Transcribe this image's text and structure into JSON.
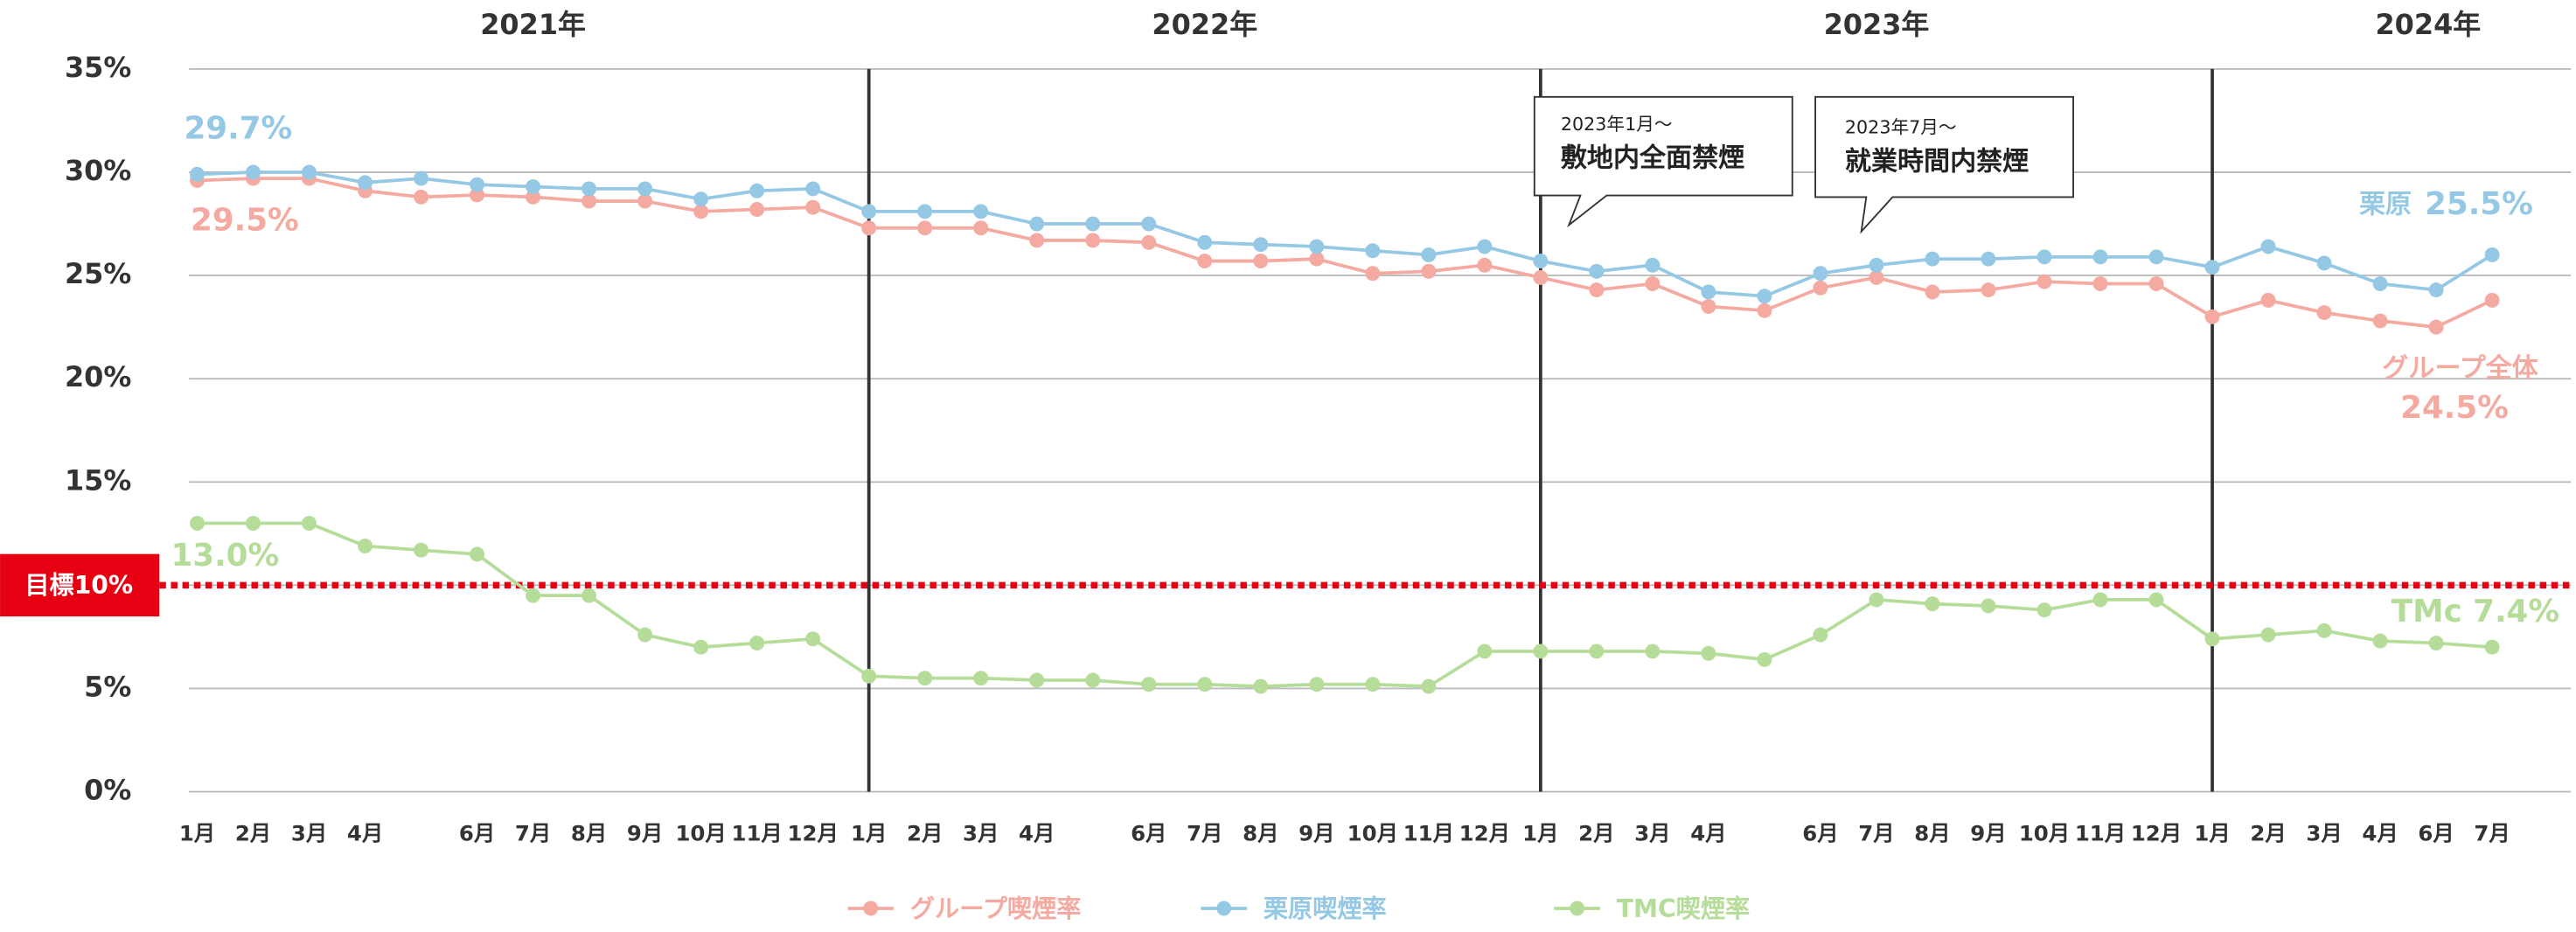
{
  "chart_data": {
    "type": "line",
    "years": [
      "2021年",
      "2022年",
      "2023年",
      "2024年"
    ],
    "categories": [
      "1月",
      "2月",
      "3月",
      "4月",
      null,
      "6月",
      "7月",
      "8月",
      "9月",
      "10月",
      "11月",
      "12月",
      "1月",
      "2月",
      "3月",
      "4月",
      null,
      "6月",
      "7月",
      "8月",
      "9月",
      "10月",
      "11月",
      "12月",
      "1月",
      "2月",
      "3月",
      "4月",
      null,
      "6月",
      "7月",
      "8月",
      "9月",
      "10月",
      "11月",
      "12月",
      "1月",
      "2月",
      "3月",
      "4月",
      "6月",
      "7月"
    ],
    "series": [
      {
        "name": "グループ喫煙率",
        "color": "#f4aaa0",
        "values": [
          29.6,
          29.7,
          29.7,
          29.1,
          28.8,
          28.9,
          28.8,
          28.6,
          28.6,
          28.1,
          28.2,
          28.3,
          27.3,
          27.3,
          27.3,
          26.7,
          26.7,
          26.6,
          25.7,
          25.7,
          25.8,
          25.1,
          25.2,
          25.5,
          24.9,
          24.3,
          24.6,
          23.5,
          23.3,
          24.4,
          24.9,
          24.2,
          24.3,
          24.7,
          24.6,
          24.6,
          23.0,
          23.8,
          23.2,
          22.8,
          22.5,
          23.8
        ]
      },
      {
        "name": "栗原喫煙率",
        "color": "#94c8e4",
        "values": [
          29.9,
          30.0,
          30.0,
          29.5,
          29.7,
          29.4,
          29.3,
          29.2,
          29.2,
          28.7,
          29.1,
          29.2,
          28.1,
          28.1,
          28.1,
          27.5,
          27.5,
          27.5,
          26.6,
          26.5,
          26.4,
          26.2,
          26.0,
          26.4,
          25.7,
          25.2,
          25.5,
          24.2,
          24.0,
          25.1,
          25.5,
          25.8,
          25.8,
          25.9,
          25.9,
          25.9,
          25.4,
          26.4,
          25.6,
          24.6,
          24.3,
          26.0
        ]
      },
      {
        "name": "TMC喫煙率",
        "color": "#b5dc98",
        "values": [
          13.0,
          13.0,
          13.0,
          11.9,
          11.7,
          11.5,
          9.5,
          9.5,
          7.6,
          7.0,
          7.2,
          7.4,
          5.6,
          5.5,
          5.5,
          5.4,
          5.4,
          5.2,
          5.2,
          5.1,
          5.2,
          5.2,
          5.1,
          6.8,
          6.8,
          6.8,
          6.8,
          6.7,
          6.4,
          7.6,
          9.3,
          9.1,
          9.0,
          8.8,
          9.3,
          9.3,
          7.4,
          7.6,
          7.8,
          7.3,
          7.2,
          7.0
        ]
      }
    ],
    "ylim": [
      0,
      35
    ],
    "yticks": [
      {
        "value": 0,
        "label": "0%"
      },
      {
        "value": 5,
        "label": "5%"
      },
      {
        "value": 10,
        "label": "10%"
      },
      {
        "value": 15,
        "label": "15%"
      },
      {
        "value": 20,
        "label": "20%"
      },
      {
        "value": 25,
        "label": "25%"
      },
      {
        "value": 30,
        "label": "30%"
      },
      {
        "value": 35,
        "label": "35%"
      }
    ],
    "grid": true,
    "target": {
      "value": 10,
      "label": "目標10%",
      "color": "#e60012"
    },
    "callouts": [
      {
        "date": "2023年1月～",
        "text": "敷地内全面禁煙"
      },
      {
        "date": "2023年7月～",
        "text": "就業時間内禁煙"
      }
    ],
    "annotations": [
      "29.7%",
      "29.5%",
      "13.0%",
      "栗原",
      "25.5%",
      "グループ全体",
      "24.5%",
      "TMc 7.4%"
    ]
  }
}
